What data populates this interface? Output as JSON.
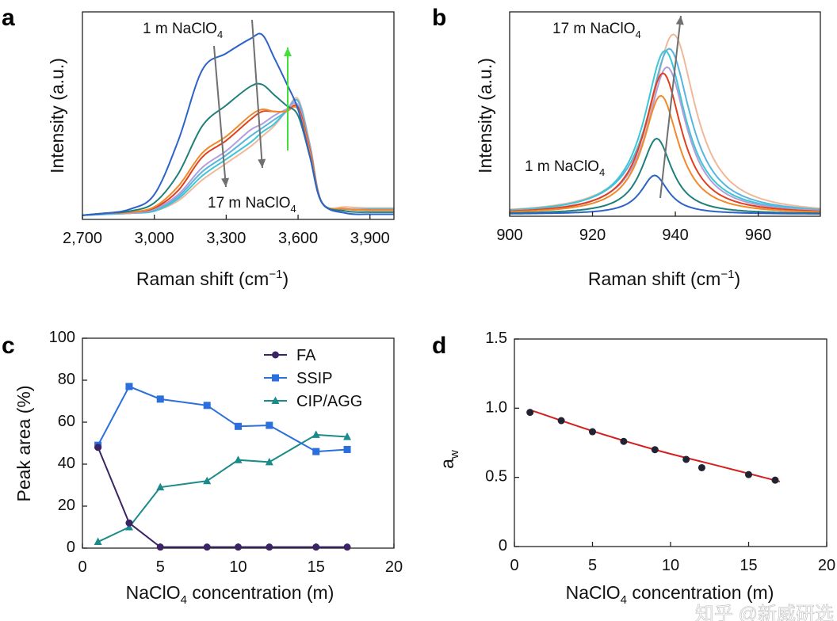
{
  "chart_data": [
    {
      "panel": "a",
      "type": "line",
      "xlabel_parts": {
        "pre": "Raman shift (cm",
        "sup": "−1",
        "post": ")"
      },
      "ylabel": "Intensity (a.u.)",
      "xlim": [
        2700,
        4000
      ],
      "ylim": [
        0,
        1
      ],
      "x_ticks": [
        2700,
        3000,
        3300,
        3600,
        3900
      ],
      "x_tick_labels": [
        "2,700",
        "3,000",
        "3,300",
        "3,600",
        "3,900"
      ],
      "annotations": {
        "top": {
          "pre": "1 m NaClO",
          "sub": "4"
        },
        "bottom": {
          "pre": "17 m NaClO",
          "sub": "4"
        }
      },
      "arrow_colors": {
        "decrease": "#707070",
        "increase": "#44e03a"
      },
      "x": [
        2700,
        2800,
        2900,
        3000,
        3100,
        3200,
        3300,
        3400,
        3450,
        3500,
        3550,
        3600,
        3650,
        3700,
        3800,
        3900,
        4000
      ],
      "series": [
        {
          "color": "#f0b89a",
          "values": [
            0.02,
            0.025,
            0.03,
            0.04,
            0.09,
            0.19,
            0.27,
            0.35,
            0.4,
            0.45,
            0.52,
            0.58,
            0.36,
            0.08,
            0.06,
            0.055,
            0.055
          ]
        },
        {
          "color": "#3cc7d6",
          "values": [
            0.02,
            0.025,
            0.03,
            0.04,
            0.1,
            0.21,
            0.29,
            0.37,
            0.42,
            0.46,
            0.52,
            0.57,
            0.35,
            0.08,
            0.05,
            0.05,
            0.05
          ]
        },
        {
          "color": "#5ab4e0",
          "values": [
            0.02,
            0.025,
            0.03,
            0.045,
            0.11,
            0.23,
            0.31,
            0.4,
            0.44,
            0.48,
            0.52,
            0.57,
            0.35,
            0.08,
            0.05,
            0.05,
            0.05
          ]
        },
        {
          "color": "#b39ddb",
          "values": [
            0.02,
            0.03,
            0.03,
            0.05,
            0.12,
            0.25,
            0.33,
            0.43,
            0.46,
            0.5,
            0.53,
            0.55,
            0.34,
            0.08,
            0.05,
            0.045,
            0.045
          ]
        },
        {
          "color": "#e0401f",
          "values": [
            0.02,
            0.03,
            0.035,
            0.055,
            0.14,
            0.3,
            0.38,
            0.48,
            0.52,
            0.52,
            0.52,
            0.54,
            0.33,
            0.08,
            0.05,
            0.045,
            0.045
          ]
        },
        {
          "color": "#f08a2a",
          "values": [
            0.02,
            0.03,
            0.035,
            0.06,
            0.16,
            0.32,
            0.4,
            0.5,
            0.53,
            0.52,
            0.52,
            0.53,
            0.32,
            0.08,
            0.05,
            0.045,
            0.045
          ]
        },
        {
          "color": "#1f7f7a",
          "values": [
            0.02,
            0.03,
            0.04,
            0.08,
            0.22,
            0.45,
            0.55,
            0.64,
            0.65,
            0.6,
            0.55,
            0.5,
            0.3,
            0.08,
            0.04,
            0.035,
            0.035
          ]
        },
        {
          "color": "#2d63c8",
          "values": [
            0.02,
            0.03,
            0.05,
            0.12,
            0.38,
            0.72,
            0.8,
            0.87,
            0.89,
            0.78,
            0.66,
            0.53,
            0.3,
            0.08,
            0.03,
            0.025,
            0.025
          ]
        }
      ]
    },
    {
      "panel": "b",
      "type": "line",
      "xlabel_parts": {
        "pre": "Raman shift (cm",
        "sup": "−1",
        "post": ")"
      },
      "ylabel": "Intensity (a.u.)",
      "xlim": [
        900,
        975
      ],
      "ylim": [
        0,
        1
      ],
      "x_ticks": [
        900,
        920,
        940,
        960
      ],
      "x_tick_labels": [
        "900",
        "920",
        "940",
        "960"
      ],
      "annotations": {
        "top": {
          "pre": "17 m NaClO",
          "sub": "4"
        },
        "bottom": {
          "pre": "1 m NaClO",
          "sub": "4"
        }
      },
      "series": [
        {
          "color": "#f0b89a",
          "peak_position": 939.5,
          "peak_intensity": 0.88,
          "fwhm": 13
        },
        {
          "color": "#5ab4e0",
          "peak_position": 938.5,
          "peak_intensity": 0.81,
          "fwhm": 12.5
        },
        {
          "color": "#3cc7d6",
          "peak_position": 937.5,
          "peak_intensity": 0.8,
          "fwhm": 12
        },
        {
          "color": "#b39ddb",
          "peak_position": 938.0,
          "peak_intensity": 0.72,
          "fwhm": 11.5
        },
        {
          "color": "#e0401f",
          "peak_position": 937.0,
          "peak_intensity": 0.69,
          "fwhm": 11
        },
        {
          "color": "#f08a2a",
          "peak_position": 936.5,
          "peak_intensity": 0.58,
          "fwhm": 10.5
        },
        {
          "color": "#1f7f7a",
          "peak_position": 935.5,
          "peak_intensity": 0.37,
          "fwhm": 9
        },
        {
          "color": "#2d63c8",
          "peak_position": 935.0,
          "peak_intensity": 0.19,
          "fwhm": 8
        }
      ]
    },
    {
      "panel": "c",
      "type": "line",
      "ylabel": "Peak area (%)",
      "xlabel_parts": {
        "pre": "NaClO",
        "sub": "4",
        "post": " concentration (m)"
      },
      "xlim": [
        0,
        20
      ],
      "ylim": [
        0,
        100
      ],
      "x_ticks": [
        0,
        5,
        10,
        15,
        20
      ],
      "y_ticks": [
        0,
        20,
        40,
        60,
        80,
        100
      ],
      "legend": "top-right",
      "x": [
        1,
        3,
        5,
        8,
        10,
        12,
        15,
        17
      ],
      "series": [
        {
          "name": "FA",
          "color": "#3b2466",
          "marker": "circle",
          "values": [
            48,
            12,
            0.5,
            0.5,
            0.5,
            0.5,
            0.5,
            0.5
          ]
        },
        {
          "name": "SSIP",
          "color": "#2a6fdb",
          "marker": "square",
          "values": [
            49,
            77,
            71,
            68,
            58,
            58.5,
            46,
            47
          ]
        },
        {
          "name": "CIP/AGG",
          "color": "#1a8a8a",
          "marker": "triangle",
          "values": [
            3,
            10,
            29,
            32,
            42,
            41,
            54,
            53
          ]
        }
      ]
    },
    {
      "panel": "d",
      "type": "scatter",
      "ylabel_parts": {
        "pre": "a",
        "sub": "w"
      },
      "xlabel_parts": {
        "pre": "NaClO",
        "sub": "4",
        "post": " concentration (m)"
      },
      "xlim": [
        0,
        20
      ],
      "ylim": [
        0,
        1.5
      ],
      "x_ticks": [
        0,
        5,
        10,
        15,
        20
      ],
      "y_ticks": [
        0,
        0.5,
        1.0,
        1.5
      ],
      "y_tick_labels": [
        "0",
        "0.5",
        "1.0",
        "1.5"
      ],
      "points": {
        "color": "#222233",
        "x": [
          1,
          3,
          5,
          7,
          9,
          11,
          12,
          15,
          16.7
        ],
        "y": [
          0.97,
          0.91,
          0.83,
          0.76,
          0.7,
          0.63,
          0.57,
          0.52,
          0.48
        ]
      },
      "fit": {
        "color": "#d42020",
        "x": [
          1.2,
          5,
          9,
          13,
          17
        ],
        "y": [
          0.98,
          0.835,
          0.7,
          0.585,
          0.47
        ]
      }
    }
  ],
  "panel_letters": [
    "a",
    "b",
    "c",
    "d"
  ],
  "watermark": "知乎 @新威研选"
}
